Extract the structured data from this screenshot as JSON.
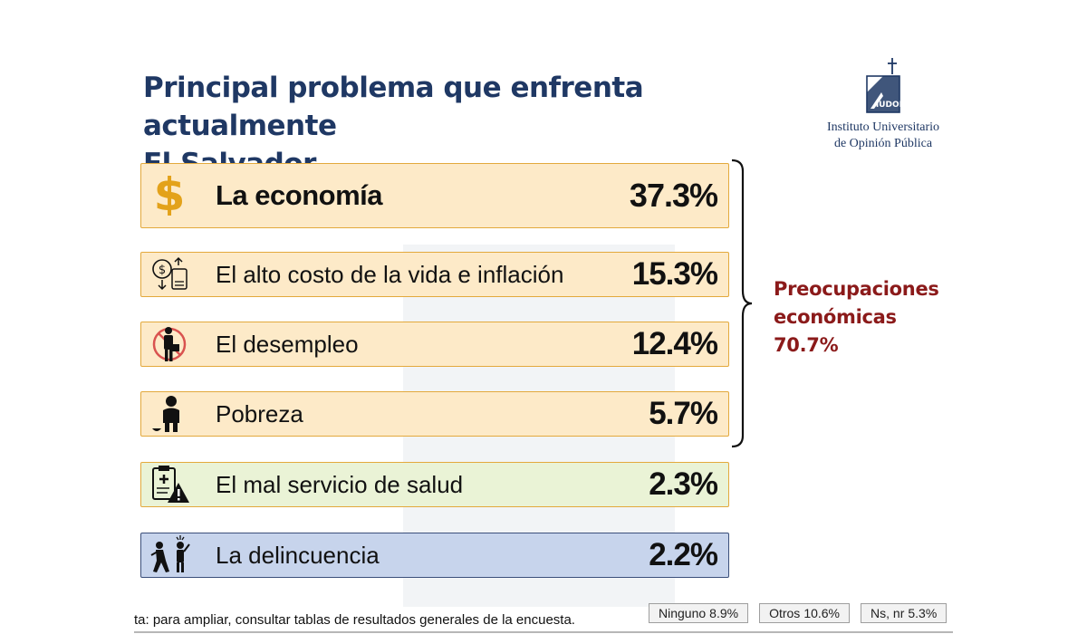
{
  "title_lines": [
    "Principal problema que enfrenta actualmente",
    "El Salvador"
  ],
  "logo": {
    "lines": [
      "Instituto Universitario",
      "de Opinión Pública"
    ],
    "mark": "IUDOP",
    "color": "#1f3864"
  },
  "chart_data": {
    "type": "bar",
    "categories": [
      "La economía",
      "El alto costo de la vida e inflación",
      "El desempleo",
      "Pobreza",
      "El mal servicio de salud",
      "La delincuencia"
    ],
    "values": [
      37.3,
      15.3,
      12.4,
      5.7,
      2.3,
      2.2
    ],
    "value_labels": [
      "37.3%",
      "15.3%",
      "12.4%",
      "5.7%",
      "2.3%",
      "2.2%"
    ],
    "icons": [
      "dollar-icon",
      "cost-of-living-icon",
      "unemployment-icon",
      "poverty-icon",
      "health-service-icon",
      "crime-icon"
    ],
    "colors": [
      "#fdeac8",
      "#fdeac8",
      "#fdeac8",
      "#fdeac8",
      "#eaf3d6",
      "#c7d4ec"
    ],
    "group": {
      "label_lines": [
        "Preocupaciones",
        "económicas",
        "70.7%"
      ],
      "value": 70.7,
      "members": [
        0,
        1,
        2,
        3
      ],
      "color": "#8b1a1a"
    },
    "other_answers": [
      {
        "label": "Ninguno",
        "value": "8.9%"
      },
      {
        "label": "Otros",
        "value": "10.6%"
      },
      {
        "label": "Ns, nr",
        "value": "5.3%"
      }
    ]
  },
  "note": "ta: para ampliar, consultar tablas de resultados generales de la encuesta."
}
